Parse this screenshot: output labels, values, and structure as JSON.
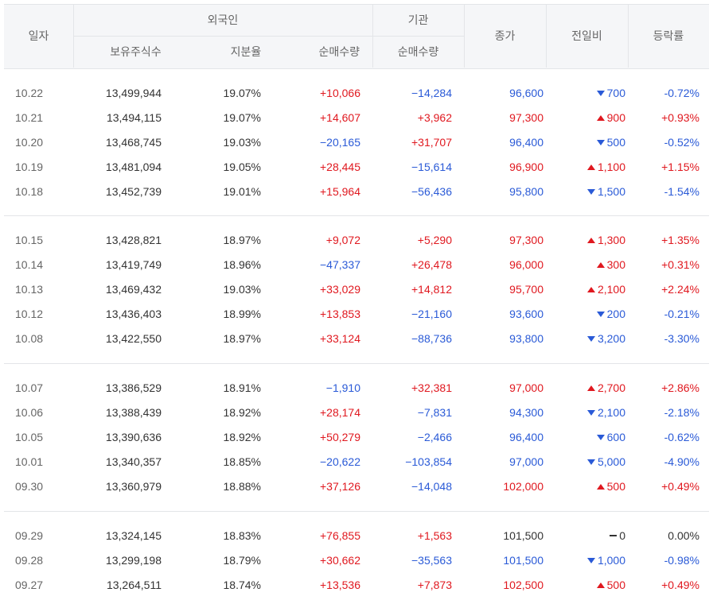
{
  "header": {
    "date": "일자",
    "foreign": "외국인",
    "institution": "기관",
    "holdings": "보유주식수",
    "share_ratio": "지분율",
    "foreign_net": "순매수량",
    "inst_net": "순매수량",
    "close": "종가",
    "change": "전일비",
    "rate": "등락률"
  },
  "colors": {
    "up": "#e0181f",
    "down": "#2a5ad7",
    "flat": "#333333",
    "header_bg": "#f5f6f8"
  },
  "groups": [
    [
      {
        "date": "10.22",
        "holdings": "13,499,944",
        "ratio": "19.07%",
        "fnet": "+10,066",
        "inet": "−14,284",
        "close": "96,600",
        "change": "700",
        "dir": "down",
        "rate": "-0.72%"
      },
      {
        "date": "10.21",
        "holdings": "13,494,115",
        "ratio": "19.07%",
        "fnet": "+14,607",
        "inet": "+3,962",
        "close": "97,300",
        "change": "900",
        "dir": "up",
        "rate": "+0.93%"
      },
      {
        "date": "10.20",
        "holdings": "13,468,745",
        "ratio": "19.03%",
        "fnet": "−20,165",
        "inet": "+31,707",
        "close": "96,400",
        "change": "500",
        "dir": "down",
        "rate": "-0.52%"
      },
      {
        "date": "10.19",
        "holdings": "13,481,094",
        "ratio": "19.05%",
        "fnet": "+28,445",
        "inet": "−15,614",
        "close": "96,900",
        "change": "1,100",
        "dir": "up",
        "rate": "+1.15%"
      },
      {
        "date": "10.18",
        "holdings": "13,452,739",
        "ratio": "19.01%",
        "fnet": "+15,964",
        "inet": "−56,436",
        "close": "95,800",
        "change": "1,500",
        "dir": "down",
        "rate": "-1.54%"
      }
    ],
    [
      {
        "date": "10.15",
        "holdings": "13,428,821",
        "ratio": "18.97%",
        "fnet": "+9,072",
        "inet": "+5,290",
        "close": "97,300",
        "change": "1,300",
        "dir": "up",
        "rate": "+1.35%"
      },
      {
        "date": "10.14",
        "holdings": "13,419,749",
        "ratio": "18.96%",
        "fnet": "−47,337",
        "inet": "+26,478",
        "close": "96,000",
        "change": "300",
        "dir": "up",
        "rate": "+0.31%"
      },
      {
        "date": "10.13",
        "holdings": "13,469,432",
        "ratio": "19.03%",
        "fnet": "+33,029",
        "inet": "+14,812",
        "close": "95,700",
        "change": "2,100",
        "dir": "up",
        "rate": "+2.24%"
      },
      {
        "date": "10.12",
        "holdings": "13,436,403",
        "ratio": "18.99%",
        "fnet": "+13,853",
        "inet": "−21,160",
        "close": "93,600",
        "change": "200",
        "dir": "down",
        "rate": "-0.21%"
      },
      {
        "date": "10.08",
        "holdings": "13,422,550",
        "ratio": "18.97%",
        "fnet": "+33,124",
        "inet": "−88,736",
        "close": "93,800",
        "change": "3,200",
        "dir": "down",
        "rate": "-3.30%"
      }
    ],
    [
      {
        "date": "10.07",
        "holdings": "13,386,529",
        "ratio": "18.91%",
        "fnet": "−1,910",
        "inet": "+32,381",
        "close": "97,000",
        "change": "2,700",
        "dir": "up",
        "rate": "+2.86%"
      },
      {
        "date": "10.06",
        "holdings": "13,388,439",
        "ratio": "18.92%",
        "fnet": "+28,174",
        "inet": "−7,831",
        "close": "94,300",
        "change": "2,100",
        "dir": "down",
        "rate": "-2.18%"
      },
      {
        "date": "10.05",
        "holdings": "13,390,636",
        "ratio": "18.92%",
        "fnet": "+50,279",
        "inet": "−2,466",
        "close": "96,400",
        "change": "600",
        "dir": "down",
        "rate": "-0.62%"
      },
      {
        "date": "10.01",
        "holdings": "13,340,357",
        "ratio": "18.85%",
        "fnet": "−20,622",
        "inet": "−103,854",
        "close": "97,000",
        "change": "5,000",
        "dir": "down",
        "rate": "-4.90%"
      },
      {
        "date": "09.30",
        "holdings": "13,360,979",
        "ratio": "18.88%",
        "fnet": "+37,126",
        "inet": "−14,048",
        "close": "102,000",
        "change": "500",
        "dir": "up",
        "rate": "+0.49%"
      }
    ],
    [
      {
        "date": "09.29",
        "holdings": "13,324,145",
        "ratio": "18.83%",
        "fnet": "+76,855",
        "inet": "+1,563",
        "close": "101,500",
        "change": "0",
        "dir": "flat",
        "rate": "0.00%"
      },
      {
        "date": "09.28",
        "holdings": "13,299,198",
        "ratio": "18.79%",
        "fnet": "+30,662",
        "inet": "−35,563",
        "close": "101,500",
        "change": "1,000",
        "dir": "down",
        "rate": "-0.98%"
      },
      {
        "date": "09.27",
        "holdings": "13,264,511",
        "ratio": "18.74%",
        "fnet": "+13,536",
        "inet": "+7,873",
        "close": "102,500",
        "change": "500",
        "dir": "up",
        "rate": "+0.49%"
      }
    ]
  ]
}
